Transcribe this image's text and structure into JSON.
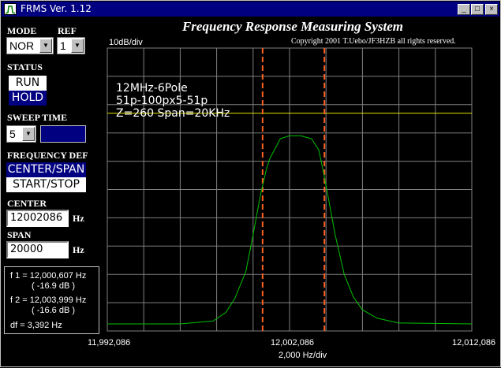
{
  "window": {
    "title": "FRMS Ver. 1.12",
    "controls": [
      "_",
      "□",
      "×"
    ]
  },
  "header": {
    "title": "Frequency Response Measuring System",
    "copyright": "Copyright 2001 T.Uebo/JF3HZB all rights reserved."
  },
  "controls": {
    "mode_label": "MODE",
    "mode_value": "NOR",
    "ref_label": "REF",
    "ref_value": "1",
    "status_label": "STATUS",
    "status_run": "RUN",
    "status_hold": "HOLD",
    "sweep_label": "SWEEP TIME",
    "sweep_value": "5",
    "freqdef_label": "FREQUENCY DEF",
    "freqdef_center_span": "CENTER/SPAN",
    "freqdef_start_stop": "START/STOP",
    "center_label": "CENTER",
    "center_value": "12002086",
    "center_unit": "Hz",
    "span_label": "SPAN",
    "span_value": "20000",
    "span_unit": "Hz"
  },
  "info": {
    "f1": "f 1 = 12,000,607 Hz",
    "f1_db": "( -16.9 dB )",
    "f2": "f 2 = 12,003,999 Hz",
    "f2_db": "( -16.6 dB )",
    "df": "df = 3,392 Hz"
  },
  "plot": {
    "y_scale": "10dB/div",
    "x_scale": "2,000 Hz/div",
    "x_left": "11,992,086",
    "x_center": "12,002,086",
    "x_right": "12,012,086",
    "annotation": [
      "12MHz-6Pole",
      "51p-100px5-51p",
      "Z=260  Span=20KHz"
    ],
    "colors": {
      "grid": "#808080",
      "trace": "#00c000",
      "reference": "#e0e000",
      "marker": "#ff6020"
    }
  },
  "chart_data": {
    "type": "line",
    "x_unit": "Hz",
    "x_range": [
      11992086,
      12012086
    ],
    "y_divisions": 10,
    "reference_level_div": 7.7,
    "markers_hz": [
      12000607,
      12003999
    ],
    "x": [
      11992086,
      11996086,
      11997886,
      11998586,
      11999086,
      11999686,
      12000086,
      12000486,
      12000807,
      12001006,
      12001586,
      12002086,
      12002686,
      12003286,
      12003686,
      12003886,
      12004186,
      12004586,
      12005086,
      12005586,
      12006086,
      12006886,
      12008086,
      12012086
    ],
    "y": [
      0.25,
      0.25,
      0.35,
      0.65,
      1.15,
      2.1,
      3.4,
      4.8,
      5.7,
      6.1,
      6.8,
      6.9,
      6.9,
      6.8,
      6.4,
      5.8,
      4.8,
      3.4,
      2.0,
      1.2,
      0.75,
      0.45,
      0.28,
      0.25
    ]
  }
}
